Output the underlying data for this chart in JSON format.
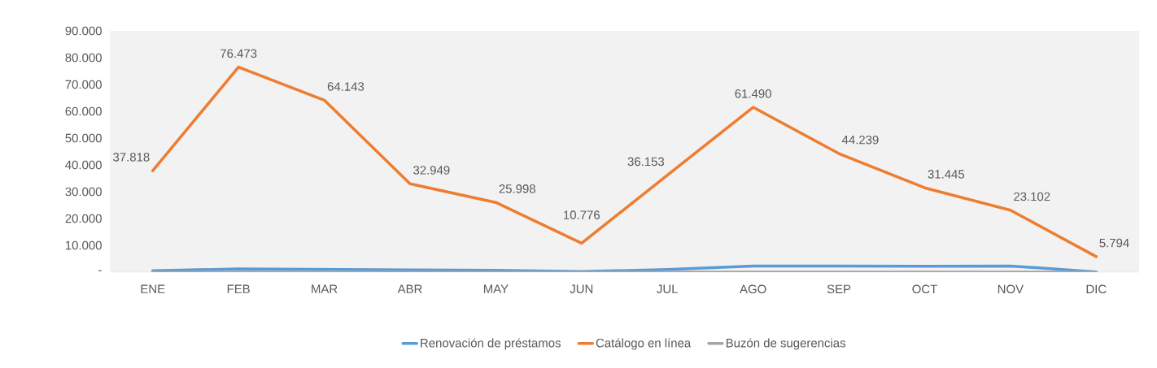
{
  "chart_data": {
    "type": "line",
    "categories": [
      "ENE",
      "FEB",
      "MAR",
      "ABR",
      "MAY",
      "JUN",
      "JUL",
      "AGO",
      "SEP",
      "OCT",
      "NOV",
      "DIC"
    ],
    "series": [
      {
        "name": "Renovación de préstamos",
        "color": "#5b9bd5",
        "values": [
          500,
          1200,
          1000,
          800,
          700,
          200,
          1000,
          2300,
          2300,
          2200,
          2300,
          100
        ]
      },
      {
        "name": "Catálogo en línea",
        "color": "#ed7d31",
        "values": [
          37818,
          76473,
          64143,
          32949,
          25998,
          10776,
          36153,
          61490,
          44239,
          31445,
          23102,
          5794
        ],
        "value_labels": [
          "37.818",
          "76.473",
          "64.143",
          "32.949",
          "25.998",
          "10.776",
          "36.153",
          "61.490",
          "44.239",
          "31.445",
          "23.102",
          "5.794"
        ]
      },
      {
        "name": "Buzón de sugerencias",
        "color": "#a5a5a5",
        "values": [
          0,
          0,
          0,
          0,
          0,
          0,
          0,
          0,
          0,
          0,
          0,
          0
        ]
      }
    ],
    "ylim": [
      0,
      90000
    ],
    "yticks": [
      {
        "value": 0,
        "label": "-"
      },
      {
        "value": 10000,
        "label": "10.000"
      },
      {
        "value": 20000,
        "label": "20.000"
      },
      {
        "value": 30000,
        "label": "30.000"
      },
      {
        "value": 40000,
        "label": "40.000"
      },
      {
        "value": 50000,
        "label": "50.000"
      },
      {
        "value": 60000,
        "label": "60.000"
      },
      {
        "value": 70000,
        "label": "70.000"
      },
      {
        "value": 80000,
        "label": "80.000"
      },
      {
        "value": 90000,
        "label": "90.000"
      }
    ],
    "legend": "bottom",
    "grid": false,
    "marker": "none"
  }
}
